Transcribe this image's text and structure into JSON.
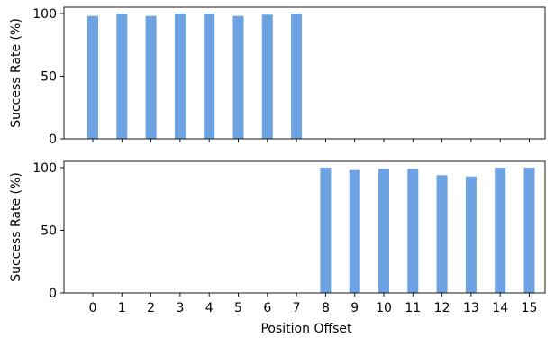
{
  "chart_data": [
    {
      "type": "bar",
      "categories": [
        "0",
        "1",
        "2",
        "3",
        "4",
        "5",
        "6",
        "7",
        "8",
        "9",
        "10",
        "11",
        "12",
        "13",
        "14",
        "15"
      ],
      "values": [
        98,
        100,
        98,
        100,
        100,
        98,
        99,
        100,
        0,
        0,
        0,
        0,
        0,
        0,
        0,
        0
      ],
      "ylabel": "Success Rate (%)",
      "xlabel": "",
      "ylim": [
        0,
        105
      ],
      "yticks": [
        0,
        50,
        100
      ],
      "show_xtick_labels": false,
      "grid": false,
      "bar_color": "#6da2e3"
    },
    {
      "type": "bar",
      "categories": [
        "0",
        "1",
        "2",
        "3",
        "4",
        "5",
        "6",
        "7",
        "8",
        "9",
        "10",
        "11",
        "12",
        "13",
        "14",
        "15"
      ],
      "values": [
        0,
        0,
        0,
        0,
        0,
        0,
        0,
        0,
        100,
        98,
        99,
        99,
        94,
        93,
        100,
        100
      ],
      "ylabel": "Success Rate (%)",
      "xlabel": "Position Offset",
      "ylim": [
        0,
        105
      ],
      "yticks": [
        0,
        50,
        100
      ],
      "show_xtick_labels": true,
      "grid": false,
      "bar_color": "#6da2e3"
    }
  ]
}
